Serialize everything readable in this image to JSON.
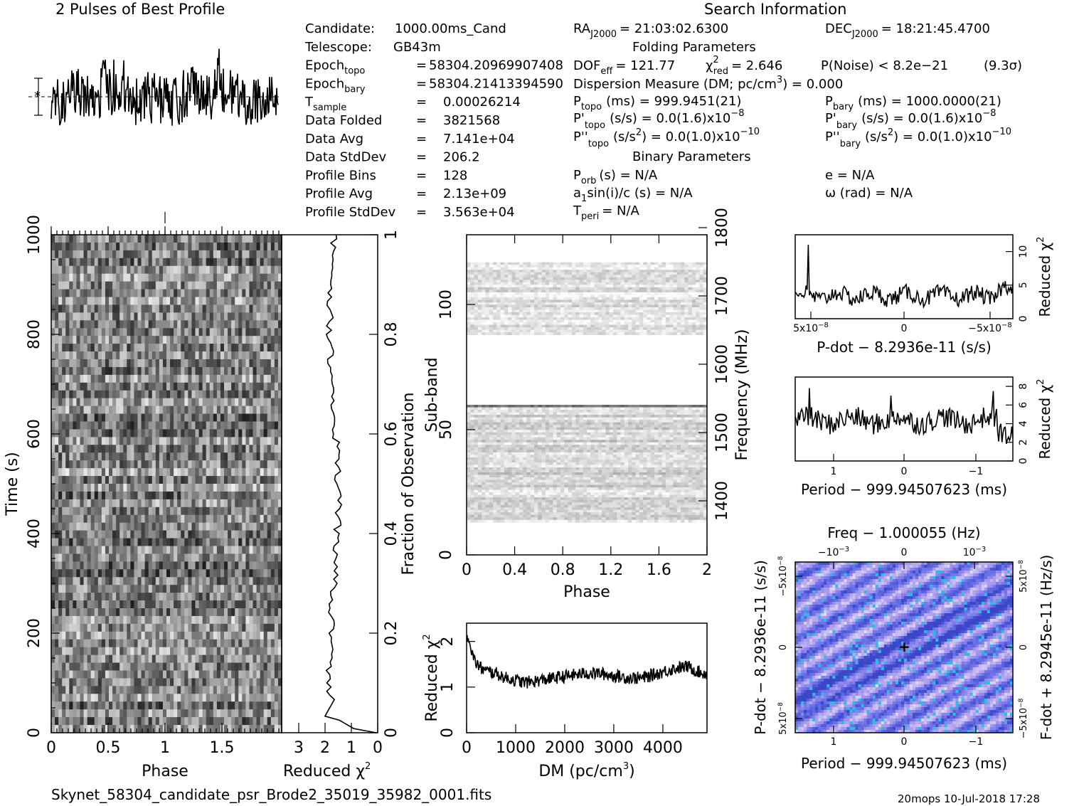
{
  "titles": {
    "profile": "2 Pulses of Best Profile",
    "search": "Search Information",
    "folding": "Folding Parameters",
    "binary": "Binary Parameters"
  },
  "info_left": [
    {
      "label": "Candidate:",
      "value": "1000.00ms_Cand"
    },
    {
      "label": "Telescope:",
      "value": "GB43m"
    },
    {
      "label": "Epoch",
      "sub": "topo",
      "eq": "=",
      "value": "58304.20969907408"
    },
    {
      "label": "Epoch",
      "sub": "bary",
      "eq": "=",
      "value": "58304.21413394590"
    },
    {
      "label": "T",
      "sub": "sample",
      "eq": "=",
      "value": "0.00026214"
    },
    {
      "label": "Data Folded",
      "eq": "=",
      "value": "3821568"
    },
    {
      "label": "Data Avg",
      "eq": "=",
      "value": "7.141e+04"
    },
    {
      "label": "Data StdDev",
      "eq": "=",
      "value": "206.2"
    },
    {
      "label": "Profile Bins",
      "eq": "=",
      "value": "128"
    },
    {
      "label": "Profile Avg",
      "eq": "=",
      "value": "2.13e+09"
    },
    {
      "label": "Profile StdDev",
      "eq": "=",
      "value": "3.563e+04"
    }
  ],
  "info_mid": {
    "ra_label": "RA",
    "ra_sub": "J2000",
    "ra_value": "= 21:03:02.6300",
    "dec_label": "DEC",
    "dec_sub": "J2000",
    "dec_value": "= 18:21:45.4700",
    "dof_label": "DOF",
    "dof_sub": "eff",
    "dof_value": "= 121.77",
    "chi_label": "χ",
    "chi_sup": "2",
    "chi_sub": "red",
    "chi_value": "= 2.646",
    "pnoise": "P(Noise) < 8.2e−21",
    "sigma": "(9.3σ)",
    "dm_text": "Dispersion Measure (DM; pc/cm",
    "dm_sup": "3",
    "dm_value": ") = 0.000",
    "ptopo_label": "P",
    "ptopo_sub": "topo",
    "ptopo_value": "(ms) =  999.9451(21)",
    "pbary_label": "P",
    "pbary_sub": "bary",
    "pbary_value": "(ms) =  1000.0000(21)",
    "pdtopo_label": "P'",
    "pdtopo_sub": "topo",
    "pdtopo_value": "(s/s) = 0.0(1.6)x10",
    "pdtopo_exp": "−8",
    "pdbary_label": "P'",
    "pdbary_sub": "bary",
    "pdbary_value": "(s/s) = 0.0(1.6)x10",
    "pdbary_exp": "−8",
    "pddtopo_label": "P''",
    "pddtopo_sub": "topo",
    "pddtopo_value": "(s/s",
    "pddtopo_sup": "2",
    "pddtopo_value2": ") = 0.0(1.0)x10",
    "pddtopo_exp": "−10",
    "pddbary_label": "P''",
    "pddbary_sub": "bary",
    "pddbary_value": "(s/s",
    "pddbary_sup": "2",
    "pddbary_value2": ") = 0.0(1.0)x10",
    "pddbary_exp": "−10",
    "porb_label": "P",
    "porb_sub": "orb",
    "porb_value": "(s) = N/A",
    "e_value": "e = N/A",
    "asini_value": "a",
    "asini_sub": "1",
    "asini_value2": "sin(i)/c (s) = N/A",
    "omega_value": "ω (rad) = N/A",
    "tperi_label": "T",
    "tperi_sub": "peri",
    "tperi_value": "= N/A"
  },
  "axes": {
    "time_label": "Time (s)",
    "phase_label": "Phase",
    "redchi_label": "Reduced χ",
    "redchi_sup": "2",
    "fraction_label": "Fraction of Observation",
    "subband_label": "Sub-band",
    "freq_label": "Frequency (MHz)",
    "dm_axis_label": "DM (pc/cm",
    "dm_axis_sup": "3",
    "dm_axis_close": ")",
    "pdot_axis_label": "P-dot − 8.2936e-11 (s/s)",
    "period_axis_label": "Period − 999.94507623 (ms)",
    "freq_top_label": "Freq − 1.000055 (Hz)",
    "fdot_label": "F-dot + 8.2945e-11 (Hz/s)",
    "pdot_left_label": "P-dot − 8.2936e-11 (s/s)"
  },
  "ticks": {
    "time": [
      "0",
      "200",
      "400",
      "600",
      "800",
      "1000"
    ],
    "phase_wf": [
      "0",
      "0.5",
      "1",
      "1.5"
    ],
    "redchi_h": [
      "3",
      "2",
      "1",
      "0"
    ],
    "fraction": [
      "0",
      "0.2",
      "0.4",
      "0.6",
      "0.8",
      "1"
    ],
    "subband": [
      "0",
      "50",
      "100"
    ],
    "freq": [
      "1400",
      "1500",
      "1600",
      "1700",
      "1800"
    ],
    "phase_sb": [
      "0",
      "0.4",
      "0.8",
      "1.2",
      "1.6",
      "2"
    ],
    "dm_x": [
      "0",
      "1000",
      "2000",
      "3000",
      "4000"
    ],
    "dm_y": [
      "0",
      "1",
      "2"
    ],
    "pdot_x": [
      "5x10",
      "0",
      "−5x10"
    ],
    "pdot_exp": "−8",
    "pdot_y": [
      "0",
      "5",
      "10"
    ],
    "period_x": [
      "1",
      "0",
      "−1"
    ],
    "period_y": [
      "0",
      "2",
      "4",
      "6",
      "8"
    ],
    "freq_top": [
      "−10",
      "0",
      "10"
    ],
    "freq_top_exp": [
      "−3",
      "−3"
    ],
    "pp_left": [
      "5x10",
      "0",
      "−5x10"
    ],
    "pp_left_exp": "−8",
    "pp_right": [
      "−5x10",
      "0",
      "5x10"
    ],
    "pp_right_exp": "−8"
  },
  "footer": {
    "filename": "Skynet_58304_candidate_psr_Brode2_35019_35982_0001.fits",
    "stamp": "20mops 10-Jul-2018 17:28"
  },
  "chart_data": [
    {
      "type": "line",
      "title": "2 Pulses of Best Profile",
      "x_range": [
        0,
        2
      ],
      "note": "pulse profile shown twice"
    },
    {
      "type": "heatmap",
      "xlabel": "Phase",
      "ylabel": "Time (s)",
      "x_range": [
        0,
        2
      ],
      "ylim": [
        0,
        1000
      ]
    },
    {
      "type": "line",
      "xlabel": "Reduced χ2",
      "xlim": [
        3,
        0
      ],
      "ylabel": "Fraction of Observation",
      "ylim": [
        0,
        1
      ]
    },
    {
      "type": "heatmap",
      "xlabel": "Phase",
      "ylabel": "Sub-band",
      "x_range": [
        0,
        2
      ],
      "ylim": [
        0,
        128
      ],
      "y2label": "Frequency (MHz)",
      "y2_ticks": [
        1400,
        1500,
        1600,
        1700,
        1800
      ]
    },
    {
      "type": "line",
      "xlabel": "DM (pc/cm3)",
      "ylabel": "Reduced χ2",
      "xlim": [
        0,
        4900
      ],
      "ylim": [
        0,
        2.4
      ],
      "x": [
        0,
        50,
        100,
        150,
        250,
        400,
        600,
        800,
        1000,
        1200,
        1500,
        1800,
        2100,
        2400,
        2700,
        3000,
        3300,
        3600,
        3900,
        4200,
        4500,
        4800
      ],
      "values": [
        2.15,
        2.1,
        1.8,
        1.6,
        1.45,
        1.35,
        1.3,
        1.2,
        1.15,
        1.1,
        1.15,
        1.2,
        1.25,
        1.3,
        1.3,
        1.25,
        1.2,
        1.2,
        1.3,
        1.4,
        1.45,
        1.3
      ]
    },
    {
      "type": "line",
      "xlabel": "P-dot − 8.2936e-11 (s/s)",
      "ylabel": "Reduced χ2",
      "ylim": [
        0,
        12
      ]
    },
    {
      "type": "line",
      "xlabel": "Period − 999.94507623 (ms)",
      "ylabel": "Reduced χ2",
      "ylim": [
        0,
        9
      ]
    },
    {
      "type": "heatmap",
      "xlabel": "Period − 999.94507623 (ms)",
      "ylabel": "P-dot − 8.2936e-11 (s/s)",
      "x2label": "Freq − 1.000055 (Hz)",
      "y2label": "F-dot + 8.2945e-11 (Hz/s)"
    }
  ]
}
